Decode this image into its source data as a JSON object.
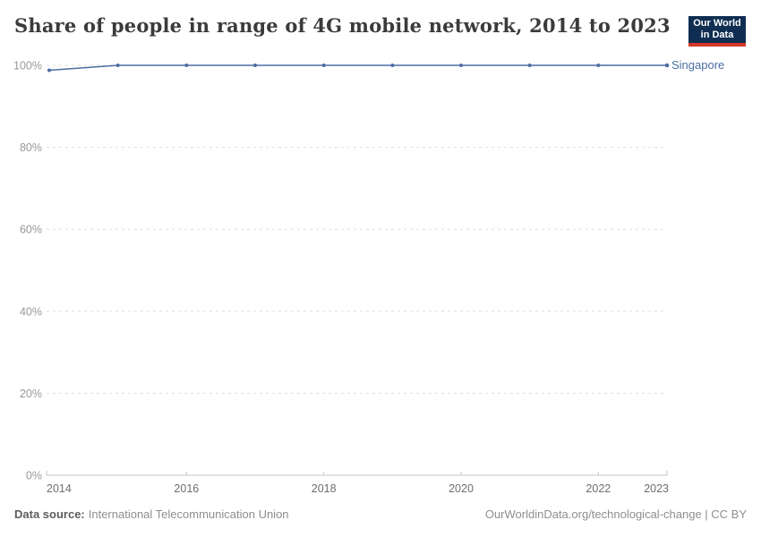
{
  "header": {
    "title": "Share of people in range of 4G mobile network, 2014 to 2023",
    "logo": {
      "line1": "Our World",
      "line2": "in Data",
      "bg_color": "#0f2e52",
      "bar_color": "#d43729",
      "text_color": "#ffffff"
    }
  },
  "chart_data": {
    "type": "line",
    "title": "Share of people in range of 4G mobile network, 2014 to 2023",
    "x": [
      2014,
      2015,
      2016,
      2017,
      2018,
      2019,
      2020,
      2021,
      2022,
      2023
    ],
    "series": [
      {
        "name": "Singapore",
        "color": "#4c6da4",
        "values": [
          98.8,
          100,
          100,
          100,
          100,
          100,
          100,
          100,
          100,
          100
        ]
      }
    ],
    "xlabel": "",
    "ylabel": "",
    "ylim": [
      0,
      100
    ],
    "yticks": [
      0,
      20,
      40,
      60,
      80,
      100
    ],
    "ytick_suffix": "%",
    "xticks": [
      2014,
      2016,
      2018,
      2020,
      2022,
      2023
    ],
    "grid": true,
    "gridline_style": "dashed",
    "legend_position": "label-at-line-end",
    "colors": {
      "grid": "#dedede",
      "axis": "#c6c6c6",
      "ytick_label": "#989898",
      "xtick_label": "#6e6e6e"
    }
  },
  "footer": {
    "datasource_label": "Data source:",
    "datasource_value": "International Telecommunication Union",
    "credit": "OurWorldinData.org/technological-change | CC BY"
  }
}
